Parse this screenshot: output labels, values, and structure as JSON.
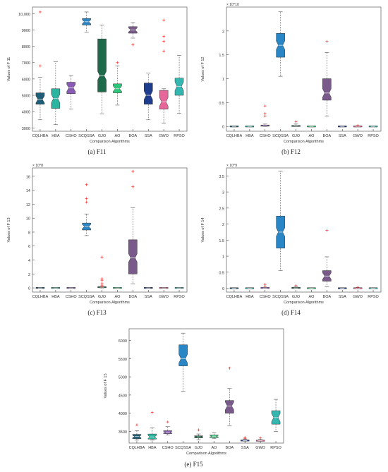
{
  "figure": {
    "categories": [
      "CQLHBA",
      "HBA",
      "CSHO",
      "SCQSSA",
      "GJO",
      "AO",
      "BOA",
      "SSA",
      "GWO",
      "RPSO"
    ],
    "xlabel": "Comparison Algorithms",
    "colors": [
      "#1f5e78",
      "#2bb5a0",
      "#8a5bb6",
      "#2b86c5",
      "#1e6b4b",
      "#2cc77a",
      "#7a5a8a",
      "#1f3d8f",
      "#e8679a",
      "#33b7b0"
    ],
    "median_color": "#e6e6e6",
    "whisker_color": "#555555",
    "outlier_color": "#ff2a2a"
  },
  "chart_data": [
    {
      "id": "f11",
      "type": "box",
      "caption": "(a) F11",
      "ylabel": "Values of F 11",
      "exponent": "",
      "ylim": [
        2800,
        10400
      ],
      "yticks": [
        3000,
        4000,
        5000,
        6000,
        7000,
        8000,
        9000,
        10000
      ],
      "ytick_labels": [
        "3000",
        "4000",
        "5000",
        "6000",
        "7000",
        "8000",
        "9000",
        "10,000"
      ],
      "boxes": [
        {
          "min": 3500,
          "q1": 4450,
          "med": 4750,
          "q3": 5150,
          "max": 6100,
          "outliers": [
            10100,
            6800
          ]
        },
        {
          "min": 3200,
          "q1": 4200,
          "med": 4800,
          "q3": 5400,
          "max": 7050,
          "outliers": []
        },
        {
          "min": 4150,
          "q1": 5100,
          "med": 5450,
          "q3": 5800,
          "max": 6200,
          "outliers": []
        },
        {
          "min": 8850,
          "q1": 9300,
          "med": 9500,
          "q3": 9700,
          "max": 10100,
          "outliers": []
        },
        {
          "min": 3850,
          "q1": 5200,
          "med": 6200,
          "q3": 8450,
          "max": 9300,
          "outliers": []
        },
        {
          "min": 4400,
          "q1": 5150,
          "med": 5400,
          "q3": 5700,
          "max": 6800,
          "outliers": [
            7000
          ]
        },
        {
          "min": 8500,
          "q1": 8800,
          "med": 9000,
          "q3": 9200,
          "max": 9450,
          "outliers": [
            8100
          ]
        },
        {
          "min": 3500,
          "q1": 4450,
          "med": 5000,
          "q3": 5750,
          "max": 6350,
          "outliers": []
        },
        {
          "min": 3300,
          "q1": 4150,
          "med": 4600,
          "q3": 5300,
          "max": 5400,
          "outliers": [
            9600,
            8600,
            8300,
            7700
          ]
        },
        {
          "min": 3900,
          "q1": 5000,
          "med": 5550,
          "q3": 6050,
          "max": 7450,
          "outliers": []
        }
      ]
    },
    {
      "id": "f12",
      "type": "box",
      "caption": "(b) F12",
      "ylabel": "Values of F 12",
      "exponent": "× 10^10",
      "ylim": [
        -0.1,
        2.5
      ],
      "yticks": [
        0,
        0.5,
        1,
        1.5,
        2
      ],
      "ytick_labels": [
        "0",
        "0.5",
        "1",
        "1.5",
        "2"
      ],
      "boxes": [
        {
          "min": 0,
          "q1": 0,
          "med": 0,
          "q3": 0,
          "max": 0,
          "outliers": []
        },
        {
          "min": 0,
          "q1": 0,
          "med": 0,
          "q3": 0,
          "max": 0,
          "outliers": []
        },
        {
          "min": 0,
          "q1": 0.005,
          "med": 0.01,
          "q3": 0.03,
          "max": 0.05,
          "outliers": [
            0.43,
            0.27,
            0.22
          ]
        },
        {
          "min": 1.05,
          "q1": 1.45,
          "med": 1.7,
          "q3": 1.95,
          "max": 2.4,
          "outliers": []
        },
        {
          "min": 0,
          "q1": 0.005,
          "med": 0.01,
          "q3": 0.02,
          "max": 0.05,
          "outliers": [
            0.1
          ]
        },
        {
          "min": 0,
          "q1": 0,
          "med": 0,
          "q3": 0,
          "max": 0,
          "outliers": []
        },
        {
          "min": 0.22,
          "q1": 0.55,
          "med": 0.7,
          "q3": 1.0,
          "max": 1.55,
          "outliers": [
            1.78
          ]
        },
        {
          "min": 0,
          "q1": 0,
          "med": 0,
          "q3": 0,
          "max": 0,
          "outliers": []
        },
        {
          "min": 0,
          "q1": 0,
          "med": 0,
          "q3": 0.005,
          "max": 0.01,
          "outliers": [
            0.02
          ]
        },
        {
          "min": 0,
          "q1": 0,
          "med": 0,
          "q3": 0,
          "max": 0,
          "outliers": []
        }
      ]
    },
    {
      "id": "f13",
      "type": "box",
      "caption": "(c) F13",
      "ylabel": "Values of F 13",
      "exponent": "× 10^8",
      "ylim": [
        -0.6,
        17.2
      ],
      "yticks": [
        0,
        2,
        4,
        6,
        8,
        10,
        12,
        14,
        16
      ],
      "ytick_labels": [
        "0",
        "2",
        "4",
        "6",
        "8",
        "10",
        "12",
        "14",
        "16"
      ],
      "boxes": [
        {
          "min": 0,
          "q1": 0,
          "med": 0,
          "q3": 0,
          "max": 0,
          "outliers": []
        },
        {
          "min": 0,
          "q1": 0,
          "med": 0,
          "q3": 0,
          "max": 0,
          "outliers": []
        },
        {
          "min": 0,
          "q1": 0,
          "med": 0,
          "q3": 0,
          "max": 0,
          "outliers": []
        },
        {
          "min": 7.5,
          "q1": 8.3,
          "med": 8.8,
          "q3": 9.3,
          "max": 10.6,
          "outliers": [
            14.8,
            12.8,
            12.3
          ]
        },
        {
          "min": 0,
          "q1": 0.05,
          "med": 0.1,
          "q3": 0.2,
          "max": 0.3,
          "outliers": [
            4.4,
            1.3,
            1.1,
            0.6,
            0.3
          ]
        },
        {
          "min": 0,
          "q1": 0,
          "med": 0,
          "q3": 0,
          "max": 0,
          "outliers": []
        },
        {
          "min": 0.6,
          "q1": 2.0,
          "med": 4.3,
          "q3": 6.9,
          "max": 11.5,
          "outliers": [
            16.7,
            14.5
          ]
        },
        {
          "min": 0,
          "q1": 0,
          "med": 0,
          "q3": 0,
          "max": 0,
          "outliers": []
        },
        {
          "min": 0,
          "q1": 0,
          "med": 0,
          "q3": 0,
          "max": 0,
          "outliers": []
        },
        {
          "min": 0,
          "q1": 0,
          "med": 0,
          "q3": 0,
          "max": 0,
          "outliers": []
        }
      ]
    },
    {
      "id": "f14",
      "type": "box",
      "caption": "(d) F14",
      "ylabel": "Values of F 14",
      "exponent": "× 10^9",
      "ylim": [
        -0.12,
        3.75
      ],
      "yticks": [
        0,
        0.5,
        1,
        1.5,
        2,
        2.5,
        3,
        3.5
      ],
      "ytick_labels": [
        "0",
        "0.5",
        "1",
        "1.5",
        "2",
        "2.5",
        "3",
        "3.5"
      ],
      "boxes": [
        {
          "min": 0,
          "q1": 0,
          "med": 0,
          "q3": 0,
          "max": 0,
          "outliers": []
        },
        {
          "min": 0,
          "q1": 0,
          "med": 0,
          "q3": 0,
          "max": 0,
          "outliers": []
        },
        {
          "min": 0,
          "q1": 0.005,
          "med": 0.01,
          "q3": 0.02,
          "max": 0.03,
          "outliers": [
            0.12,
            0.06
          ]
        },
        {
          "min": 0.55,
          "q1": 1.25,
          "med": 1.75,
          "q3": 2.25,
          "max": 3.65,
          "outliers": []
        },
        {
          "min": 0,
          "q1": 0.005,
          "med": 0.01,
          "q3": 0.02,
          "max": 0.04,
          "outliers": [
            0.08
          ]
        },
        {
          "min": 0,
          "q1": 0,
          "med": 0,
          "q3": 0,
          "max": 0,
          "outliers": []
        },
        {
          "min": 0.05,
          "q1": 0.22,
          "med": 0.38,
          "q3": 0.55,
          "max": 0.98,
          "outliers": [
            1.8
          ]
        },
        {
          "min": 0,
          "q1": 0,
          "med": 0,
          "q3": 0,
          "max": 0,
          "outliers": []
        },
        {
          "min": 0,
          "q1": 0,
          "med": 0,
          "q3": 0,
          "max": 0,
          "outliers": [
            0.03
          ]
        },
        {
          "min": 0,
          "q1": 0,
          "med": 0,
          "q3": 0,
          "max": 0,
          "outliers": []
        }
      ]
    },
    {
      "id": "f15",
      "type": "box",
      "caption": "(e) F15",
      "ylabel": "Values of F 15",
      "exponent": "",
      "ylim": [
        3180,
        6320
      ],
      "yticks": [
        3500,
        4000,
        4500,
        5000,
        5500,
        6000
      ],
      "ytick_labels": [
        "3500",
        "4000",
        "4500",
        "5000",
        "5500",
        "6000"
      ],
      "boxes": [
        {
          "min": 3260,
          "q1": 3300,
          "med": 3360,
          "q3": 3420,
          "max": 3520,
          "outliers": [
            3680
          ]
        },
        {
          "min": 3260,
          "q1": 3290,
          "med": 3350,
          "q3": 3430,
          "max": 3600,
          "outliers": [
            4020
          ]
        },
        {
          "min": 3400,
          "q1": 3440,
          "med": 3480,
          "q3": 3520,
          "max": 3640,
          "outliers": [
            3760
          ]
        },
        {
          "min": 4600,
          "q1": 5300,
          "med": 5500,
          "q3": 5880,
          "max": 6200,
          "outliers": []
        },
        {
          "min": 3270,
          "q1": 3320,
          "med": 3350,
          "q3": 3380,
          "max": 3430,
          "outliers": [
            3540
          ]
        },
        {
          "min": 3300,
          "q1": 3330,
          "med": 3370,
          "q3": 3400,
          "max": 3460,
          "outliers": []
        },
        {
          "min": 3650,
          "q1": 4000,
          "med": 4200,
          "q3": 4350,
          "max": 4680,
          "outliers": [
            5240
          ]
        },
        {
          "min": 3240,
          "q1": 3245,
          "med": 3250,
          "q3": 3265,
          "max": 3290,
          "outliers": [
            3330,
            3310
          ]
        },
        {
          "min": 3235,
          "q1": 3240,
          "med": 3245,
          "q3": 3255,
          "max": 3280,
          "outliers": [
            3320
          ]
        },
        {
          "min": 3500,
          "q1": 3700,
          "med": 3880,
          "q3": 4070,
          "max": 4380,
          "outliers": []
        }
      ]
    }
  ]
}
